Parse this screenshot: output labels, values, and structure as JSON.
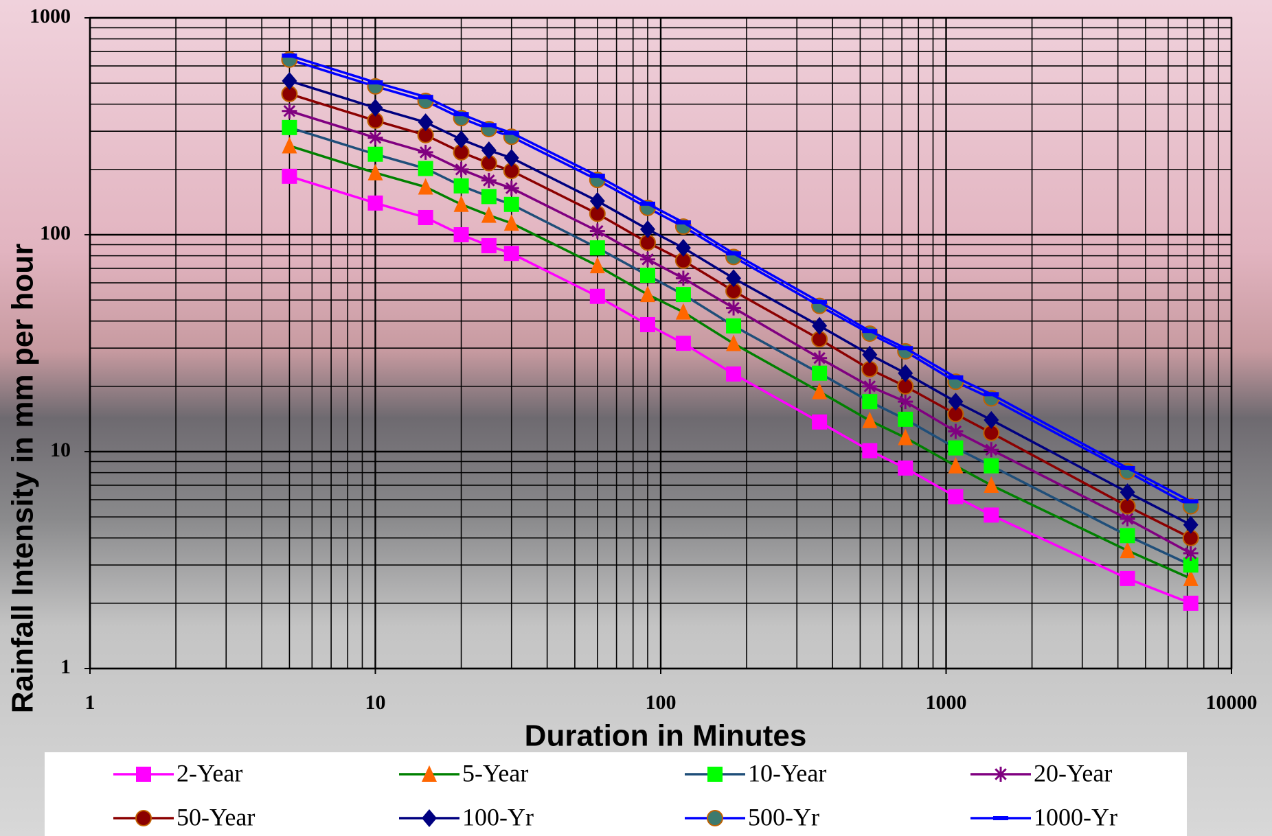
{
  "chart_data": {
    "type": "line",
    "xlabel": "Duration  in  Minutes",
    "ylabel": "Rainfall  Intensity  in  mm  per  hour",
    "xscale": "log",
    "yscale": "log",
    "xlim": [
      1,
      10000
    ],
    "ylim": [
      1,
      1000
    ],
    "xticks": [
      1,
      10,
      100,
      1000,
      10000
    ],
    "yticks": [
      1,
      10,
      100,
      1000
    ],
    "grid": true,
    "minor_grid": true,
    "legend": "bottom",
    "x": [
      5,
      10,
      15,
      20,
      25,
      30,
      60,
      90,
      120,
      180,
      360,
      540,
      720,
      1080,
      1440,
      4320,
      7200
    ],
    "series": [
      {
        "name": "2-Year",
        "color": "#ff00ff",
        "marker_color": "#ff00ff",
        "marker": "square",
        "values": [
          186,
          140,
          120,
          100,
          89,
          82,
          52,
          38.5,
          31.6,
          22.8,
          13.7,
          10.1,
          8.4,
          6.2,
          5.1,
          2.6,
          2.0
        ]
      },
      {
        "name": "5-Year",
        "color": "#008000",
        "marker_color": "#ff6600",
        "marker": "triangle",
        "values": [
          257,
          193,
          166,
          138,
          123,
          113,
          72,
          53,
          44,
          31.5,
          18.9,
          13.9,
          11.6,
          8.6,
          7.0,
          3.5,
          2.6
        ]
      },
      {
        "name": "10-Year",
        "color": "#1f4e79",
        "marker_color": "#00ff00",
        "marker": "square",
        "values": [
          312,
          235,
          202,
          168,
          150,
          138,
          87,
          65,
          53,
          38,
          23,
          17,
          14.1,
          10.4,
          8.6,
          4.1,
          3.0
        ]
      },
      {
        "name": "20-Year",
        "color": "#800080",
        "marker_color": "#800080",
        "marker": "star",
        "values": [
          372,
          280,
          240,
          200,
          178,
          164,
          104,
          77,
          63,
          46,
          27,
          20,
          17,
          12.4,
          10.2,
          4.9,
          3.4
        ]
      },
      {
        "name": "50-Year",
        "color": "#8b0000",
        "marker_color": "#8b0000",
        "marker": "circle",
        "values": [
          446,
          336,
          288,
          240,
          214,
          197,
          125,
          92,
          76,
          55,
          33,
          24,
          20,
          14.9,
          12.2,
          5.6,
          4.0
        ]
      },
      {
        "name": "100-Yr",
        "color": "#000080",
        "marker_color": "#000080",
        "marker": "diamond",
        "values": [
          512,
          385,
          330,
          275,
          245,
          226,
          143,
          106,
          87,
          63,
          38,
          28,
          23,
          17,
          14,
          6.5,
          4.6
        ]
      },
      {
        "name": "500-Yr",
        "color": "#0000ff",
        "marker_color": "#3d7a6e",
        "marker": "circle",
        "values": [
          642,
          483,
          414,
          345,
          307,
          283,
          179,
          133,
          109,
          79,
          47,
          35,
          29,
          21,
          17.6,
          8.1,
          5.6
        ]
      },
      {
        "name": "1000-Yr",
        "color": "#0000ff",
        "marker_color": "#0000ff",
        "marker": "dash",
        "values": [
          670,
          504,
          432,
          360,
          320,
          295,
          187,
          139,
          114,
          82,
          49,
          36,
          30,
          22,
          18.4,
          8.4,
          5.9
        ]
      }
    ]
  }
}
